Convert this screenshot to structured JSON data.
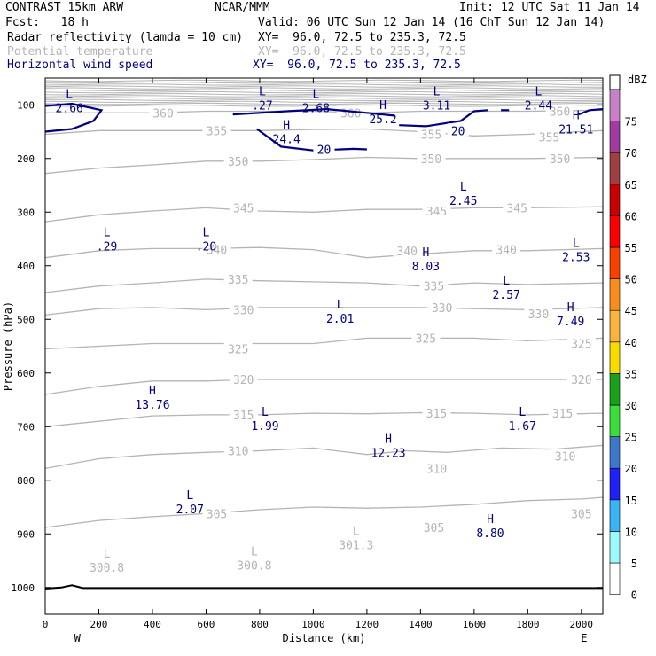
{
  "header": {
    "model": "CONTRAST 15km ARW",
    "org": "NCAR/MMM",
    "init": "Init: 12 UTC Sat 11 Jan 14",
    "fcst": "Fcst:   18 h",
    "valid": "Valid: 06 UTC Sun 12 Jan 14 (16 ChT Sun 12 Jan 14)"
  },
  "fields": [
    {
      "name": "Radar reflectivity (lamda = 10 cm)",
      "xy": "XY=  96.0, 72.5 to 235.3, 72.5",
      "color": "#000000"
    },
    {
      "name": "Potential temperature",
      "xy": "XY=  96.0, 72.5 to 235.3, 72.5",
      "color": "#b4b4b4"
    },
    {
      "name": "Horizontal wind speed",
      "xy": "XY=  96.0, 72.5 to 235.3, 72.5",
      "color": "#000080"
    }
  ],
  "chart_data": {
    "type": "contour-cross-section",
    "xlabel": "Distance (km)",
    "ylabel": "Pressure (hPa)",
    "xlim": [
      0,
      2080
    ],
    "ylim": [
      1050,
      50
    ],
    "x_ticks": [
      0,
      200,
      400,
      600,
      800,
      1000,
      1200,
      1400,
      1600,
      1800,
      2000
    ],
    "y_ticks": [
      100,
      200,
      300,
      400,
      500,
      600,
      700,
      800,
      900,
      1000
    ],
    "x_end_labels": {
      "left": "W",
      "right": "E"
    },
    "theta_contours": [
      {
        "value": 305,
        "points": [
          [
            0,
            888
          ],
          [
            200,
            875
          ],
          [
            400,
            868
          ],
          [
            600,
            862
          ],
          [
            800,
            855
          ],
          [
            1000,
            850
          ],
          [
            1200,
            852
          ],
          [
            1400,
            850
          ],
          [
            1600,
            845
          ],
          [
            1800,
            838
          ],
          [
            2000,
            835
          ],
          [
            2080,
            832
          ]
        ],
        "labels": [
          [
            640,
            862
          ],
          [
            1450,
            888
          ],
          [
            2000,
            862
          ]
        ]
      },
      {
        "value": 310,
        "points": [
          [
            0,
            778
          ],
          [
            200,
            760
          ],
          [
            400,
            752
          ],
          [
            600,
            748
          ],
          [
            800,
            745
          ],
          [
            1000,
            740
          ],
          [
            1200,
            752
          ],
          [
            1350,
            745
          ],
          [
            1500,
            748
          ],
          [
            1700,
            740
          ],
          [
            1900,
            742
          ],
          [
            2080,
            735
          ]
        ],
        "labels": [
          [
            720,
            745
          ],
          [
            1460,
            778
          ],
          [
            1940,
            755
          ]
        ]
      },
      {
        "value": 315,
        "points": [
          [
            0,
            700
          ],
          [
            200,
            690
          ],
          [
            400,
            680
          ],
          [
            600,
            678
          ],
          [
            800,
            678
          ],
          [
            1000,
            675
          ],
          [
            1200,
            676
          ],
          [
            1400,
            674
          ],
          [
            1600,
            675
          ],
          [
            1800,
            678
          ],
          [
            2080,
            675
          ]
        ],
        "labels": [
          [
            740,
            678
          ],
          [
            1460,
            675
          ],
          [
            1930,
            675
          ]
        ]
      },
      {
        "value": 320,
        "points": [
          [
            0,
            640
          ],
          [
            200,
            625
          ],
          [
            400,
            615
          ],
          [
            600,
            615
          ],
          [
            800,
            612
          ],
          [
            1000,
            612
          ],
          [
            1200,
            612
          ],
          [
            1400,
            612
          ],
          [
            1600,
            612
          ],
          [
            1800,
            612
          ],
          [
            2080,
            612
          ]
        ],
        "labels": [
          [
            740,
            612
          ],
          [
            2000,
            612
          ]
        ]
      },
      {
        "value": 325,
        "points": [
          [
            0,
            555
          ],
          [
            200,
            550
          ],
          [
            400,
            545
          ],
          [
            600,
            545
          ],
          [
            800,
            545
          ],
          [
            1000,
            545
          ],
          [
            1200,
            535
          ],
          [
            1400,
            535
          ],
          [
            1600,
            535
          ],
          [
            1800,
            540
          ],
          [
            2080,
            535
          ]
        ],
        "labels": [
          [
            720,
            555
          ],
          [
            1420,
            535
          ],
          [
            2000,
            545
          ]
        ]
      },
      {
        "value": 330,
        "points": [
          [
            0,
            492
          ],
          [
            200,
            480
          ],
          [
            400,
            478
          ],
          [
            600,
            482
          ],
          [
            800,
            478
          ],
          [
            1000,
            478
          ],
          [
            1200,
            478
          ],
          [
            1400,
            478
          ],
          [
            1600,
            480
          ],
          [
            1800,
            482
          ],
          [
            2080,
            478
          ]
        ],
        "labels": [
          [
            740,
            482
          ],
          [
            1480,
            478
          ],
          [
            1840,
            490
          ]
        ]
      },
      {
        "value": 335,
        "points": [
          [
            0,
            450
          ],
          [
            200,
            438
          ],
          [
            400,
            432
          ],
          [
            600,
            425
          ],
          [
            800,
            428
          ],
          [
            1000,
            430
          ],
          [
            1200,
            432
          ],
          [
            1400,
            438
          ],
          [
            1600,
            432
          ],
          [
            1800,
            435
          ],
          [
            2080,
            432
          ]
        ],
        "labels": [
          [
            720,
            425
          ],
          [
            1450,
            438
          ]
        ]
      },
      {
        "value": 340,
        "points": [
          [
            0,
            385
          ],
          [
            200,
            372
          ],
          [
            400,
            368
          ],
          [
            600,
            368
          ],
          [
            800,
            366
          ],
          [
            1000,
            370
          ],
          [
            1200,
            385
          ],
          [
            1400,
            378
          ],
          [
            1600,
            372
          ],
          [
            1800,
            372
          ],
          [
            2080,
            368
          ]
        ],
        "labels": [
          [
            640,
            370
          ],
          [
            1350,
            372
          ],
          [
            1720,
            370
          ]
        ]
      },
      {
        "value": 345,
        "points": [
          [
            0,
            318
          ],
          [
            200,
            305
          ],
          [
            400,
            298
          ],
          [
            600,
            292
          ],
          [
            800,
            298
          ],
          [
            1000,
            300
          ],
          [
            1200,
            295
          ],
          [
            1400,
            295
          ],
          [
            1600,
            292
          ],
          [
            1800,
            292
          ],
          [
            2080,
            290
          ]
        ],
        "labels": [
          [
            740,
            292
          ],
          [
            1460,
            298
          ],
          [
            1760,
            292
          ]
        ]
      },
      {
        "value": 350,
        "points": [
          [
            0,
            228
          ],
          [
            200,
            218
          ],
          [
            400,
            212
          ],
          [
            600,
            205
          ],
          [
            800,
            205
          ],
          [
            1000,
            202
          ],
          [
            1200,
            198
          ],
          [
            1400,
            200
          ],
          [
            1600,
            200
          ],
          [
            1800,
            200
          ],
          [
            2080,
            198
          ]
        ],
        "labels": [
          [
            720,
            205
          ],
          [
            1440,
            200
          ],
          [
            1920,
            200
          ]
        ]
      },
      {
        "value": 355,
        "points": [
          [
            0,
            155
          ],
          [
            200,
            148
          ],
          [
            400,
            148
          ],
          [
            600,
            148
          ],
          [
            800,
            148
          ],
          [
            1000,
            146
          ],
          [
            1200,
            145
          ],
          [
            1400,
            150
          ],
          [
            1600,
            158
          ],
          [
            1800,
            155
          ],
          [
            2080,
            148
          ]
        ],
        "labels": [
          [
            640,
            148
          ],
          [
            1440,
            155
          ],
          [
            1880,
            160
          ]
        ]
      },
      {
        "value": 360,
        "points": [
          [
            0,
            115
          ],
          [
            200,
            115
          ],
          [
            400,
            115
          ],
          [
            600,
            112
          ],
          [
            800,
            112
          ],
          [
            1000,
            112
          ],
          [
            1200,
            115
          ],
          [
            1400,
            112
          ],
          [
            1600,
            112
          ],
          [
            1800,
            112
          ],
          [
            2080,
            110
          ]
        ],
        "labels": [
          [
            440,
            115
          ],
          [
            1140,
            115
          ],
          [
            1920,
            112
          ]
        ]
      }
    ],
    "theta_extrema": [
      {
        "kind": "L",
        "value": "300.8",
        "x": 230,
        "p": 1000
      },
      {
        "kind": "L",
        "value": "300.8",
        "x": 780,
        "p": 996
      },
      {
        "kind": "L",
        "value": "301.3",
        "x": 1160,
        "p": 958
      }
    ],
    "wind_contours": [
      {
        "value": 20,
        "label_at": [
          1040,
          183
        ],
        "segments": [
          [
            [
              0,
              150
            ],
            [
              100,
              145
            ],
            [
              180,
              130
            ],
            [
              210,
              110
            ],
            [
              100,
              98
            ],
            [
              0,
              102
            ]
          ],
          [
            [
              700,
              118
            ],
            [
              900,
              112
            ],
            [
              1050,
              108
            ],
            [
              1200,
              115
            ],
            [
              1300,
              120
            ]
          ],
          [
            [
              790,
              145
            ],
            [
              880,
              178
            ],
            [
              1000,
              185
            ],
            [
              1150,
              182
            ],
            [
              1200,
              183
            ]
          ],
          [
            [
              1320,
              138
            ],
            [
              1420,
              140
            ],
            [
              1550,
              130
            ],
            [
              1600,
              112
            ],
            [
              1650,
              110
            ]
          ],
          [
            [
              1700,
              110
            ],
            [
              1730,
              110
            ]
          ],
          [
            [
              1990,
              118
            ],
            [
              2030,
              110
            ],
            [
              2080,
              108
            ]
          ]
        ]
      },
      {
        "value": 20,
        "label_at": [
          1540,
          148
        ],
        "segments": []
      }
    ],
    "wind_extrema": [
      {
        "kind": "L",
        "value": "2.66",
        "x": 90,
        "p": 87
      },
      {
        "kind": "L",
        "value": ".27",
        "x": 810,
        "p": 82
      },
      {
        "kind": "L",
        "value": "2.68",
        "x": 1010,
        "p": 87
      },
      {
        "kind": "L",
        "value": "3.11",
        "x": 1460,
        "p": 82
      },
      {
        "kind": "L",
        "value": "2.44",
        "x": 1840,
        "p": 82
      },
      {
        "kind": "H",
        "value": "25.2",
        "x": 1260,
        "p": 108
      },
      {
        "kind": "H",
        "value": "24.4",
        "x": 900,
        "p": 145
      },
      {
        "kind": "H",
        "value": "21.51",
        "x": 1980,
        "p": 127
      },
      {
        "kind": "L",
        "value": ".29",
        "x": 230,
        "p": 345
      },
      {
        "kind": "L",
        "value": ".20",
        "x": 600,
        "p": 345
      },
      {
        "kind": "H",
        "value": "8.03",
        "x": 1420,
        "p": 382
      },
      {
        "kind": "L",
        "value": "2.45",
        "x": 1560,
        "p": 260
      },
      {
        "kind": "L",
        "value": "2.53",
        "x": 1980,
        "p": 365
      },
      {
        "kind": "L",
        "value": "2.57",
        "x": 1720,
        "p": 435
      },
      {
        "kind": "L",
        "value": "2.01",
        "x": 1100,
        "p": 480
      },
      {
        "kind": "H",
        "value": "7.49",
        "x": 1960,
        "p": 485
      },
      {
        "kind": "H",
        "value": "13.76",
        "x": 400,
        "p": 640
      },
      {
        "kind": "L",
        "value": "1.99",
        "x": 820,
        "p": 680
      },
      {
        "kind": "L",
        "value": "1.67",
        "x": 1780,
        "p": 680
      },
      {
        "kind": "H",
        "value": "12.23",
        "x": 1280,
        "p": 730
      },
      {
        "kind": "L",
        "value": "2.07",
        "x": 540,
        "p": 835
      },
      {
        "kind": "H",
        "value": "8.80",
        "x": 1660,
        "p": 880
      }
    ],
    "ground_p": 1002,
    "colorbar": {
      "unit": "dBZ",
      "levels": [
        "0",
        "5",
        "10",
        "15",
        "20",
        "25",
        "30",
        "35",
        "40",
        "45",
        "50",
        "55",
        "60",
        "65",
        "70",
        "75"
      ],
      "colors": [
        "#ffffff",
        "#9cfcfc",
        "#3ab4f4",
        "#2020f8",
        "#3c78c8",
        "#3cdc3c",
        "#1ca01c",
        "#f8dc00",
        "#f8b43c",
        "#f88c1c",
        "#f84000",
        "#fc0000",
        "#c80000",
        "#9c4040",
        "#a03ca0",
        "#c880c8"
      ]
    },
    "axis_color": "#000000",
    "theta_color": "#b4b4b4",
    "wind_color": "#000080"
  }
}
